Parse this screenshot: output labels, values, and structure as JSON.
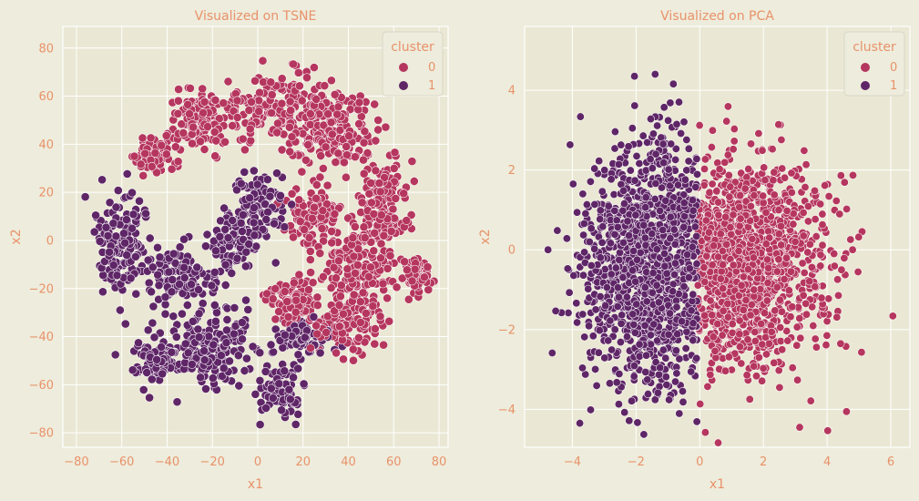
{
  "colors": {
    "cluster_0": "#b5365e",
    "cluster_1": "#5f2667",
    "text": "#e8926a",
    "background": "#eeecdc",
    "grid": "#ffffff"
  },
  "chart_data": [
    {
      "type": "scatter",
      "title": "Visualized on TSNE",
      "xlabel": "x1",
      "ylabel": "x2",
      "xlim": [
        -86,
        84
      ],
      "ylim": [
        -86,
        89
      ],
      "xticks": [
        -80,
        -60,
        -40,
        -20,
        0,
        20,
        40,
        60,
        80
      ],
      "yticks": [
        -80,
        -60,
        -40,
        -20,
        0,
        20,
        40,
        60,
        80
      ],
      "xtick_labels": [
        "−80",
        "−60",
        "−40",
        "−20",
        "0",
        "20",
        "40",
        "60",
        "80"
      ],
      "ytick_labels": [
        "−80",
        "−60",
        "−40",
        "−20",
        "0",
        "20",
        "40",
        "60",
        "80"
      ],
      "grid": true,
      "legend": {
        "title": "cluster",
        "placement": "top-right",
        "entries": [
          "0",
          "1"
        ]
      },
      "series": [
        {
          "name": "0",
          "color": "#b5365e",
          "regions": [
            {
              "center": [
                10,
                55
              ],
              "spread": [
                24,
                12
              ]
            },
            {
              "center": [
                -25,
                50
              ],
              "spread": [
                12,
                10
              ]
            },
            {
              "center": [
                35,
                45
              ],
              "spread": [
                14,
                12
              ]
            },
            {
              "center": [
                55,
                15
              ],
              "spread": [
                10,
                18
              ]
            },
            {
              "center": [
                45,
                -10
              ],
              "spread": [
                14,
                16
              ]
            },
            {
              "center": [
                40,
                -35
              ],
              "spread": [
                12,
                10
              ]
            },
            {
              "center": [
                25,
                10
              ],
              "spread": [
                10,
                10
              ]
            },
            {
              "center": [
                -45,
                35
              ],
              "spread": [
                8,
                6
              ]
            },
            {
              "center": [
                70,
                -15
              ],
              "spread": [
                5,
                7
              ]
            },
            {
              "center": [
                15,
                -25
              ],
              "spread": [
                10,
                8
              ]
            }
          ]
        },
        {
          "name": "1",
          "color": "#5f2667",
          "regions": [
            {
              "center": [
                -60,
                0
              ],
              "spread": [
                10,
                18
              ]
            },
            {
              "center": [
                -20,
                -45
              ],
              "spread": [
                18,
                14
              ]
            },
            {
              "center": [
                0,
                15
              ],
              "spread": [
                10,
                10
              ]
            },
            {
              "center": [
                10,
                -62
              ],
              "spread": [
                8,
                9
              ]
            },
            {
              "center": [
                -35,
                -15
              ],
              "spread": [
                14,
                10
              ]
            },
            {
              "center": [
                -45,
                -50
              ],
              "spread": [
                8,
                8
              ]
            },
            {
              "center": [
                20,
                -40
              ],
              "spread": [
                10,
                6
              ]
            },
            {
              "center": [
                -10,
                0
              ],
              "spread": [
                10,
                8
              ]
            }
          ]
        }
      ]
    },
    {
      "type": "scatter",
      "title": "Visualized on PCA",
      "xlabel": "x1",
      "ylabel": "x2",
      "xlim": [
        -5.5,
        6.6
      ],
      "ylim": [
        -4.95,
        5.6
      ],
      "xticks": [
        -4,
        -2,
        0,
        2,
        4,
        6
      ],
      "yticks": [
        -4,
        -2,
        0,
        2,
        4
      ],
      "xtick_labels": [
        "−4",
        "−2",
        "0",
        "2",
        "4",
        "6"
      ],
      "ytick_labels": [
        "−4",
        "−2",
        "0",
        "2",
        "4"
      ],
      "grid": true,
      "legend": {
        "title": "cluster",
        "placement": "top-right",
        "entries": [
          "0",
          "1"
        ]
      },
      "boundary_x": -0.08,
      "series": [
        {
          "name": "0",
          "color": "#b5365e",
          "distribution": {
            "center": [
              1.2,
              -0.3
            ],
            "spread": [
              1.4,
              1.3
            ]
          }
        },
        {
          "name": "1",
          "color": "#5f2667",
          "distribution": {
            "center": [
              -1.5,
              -0.3
            ],
            "spread": [
              1.1,
              1.5
            ]
          }
        }
      ]
    }
  ]
}
